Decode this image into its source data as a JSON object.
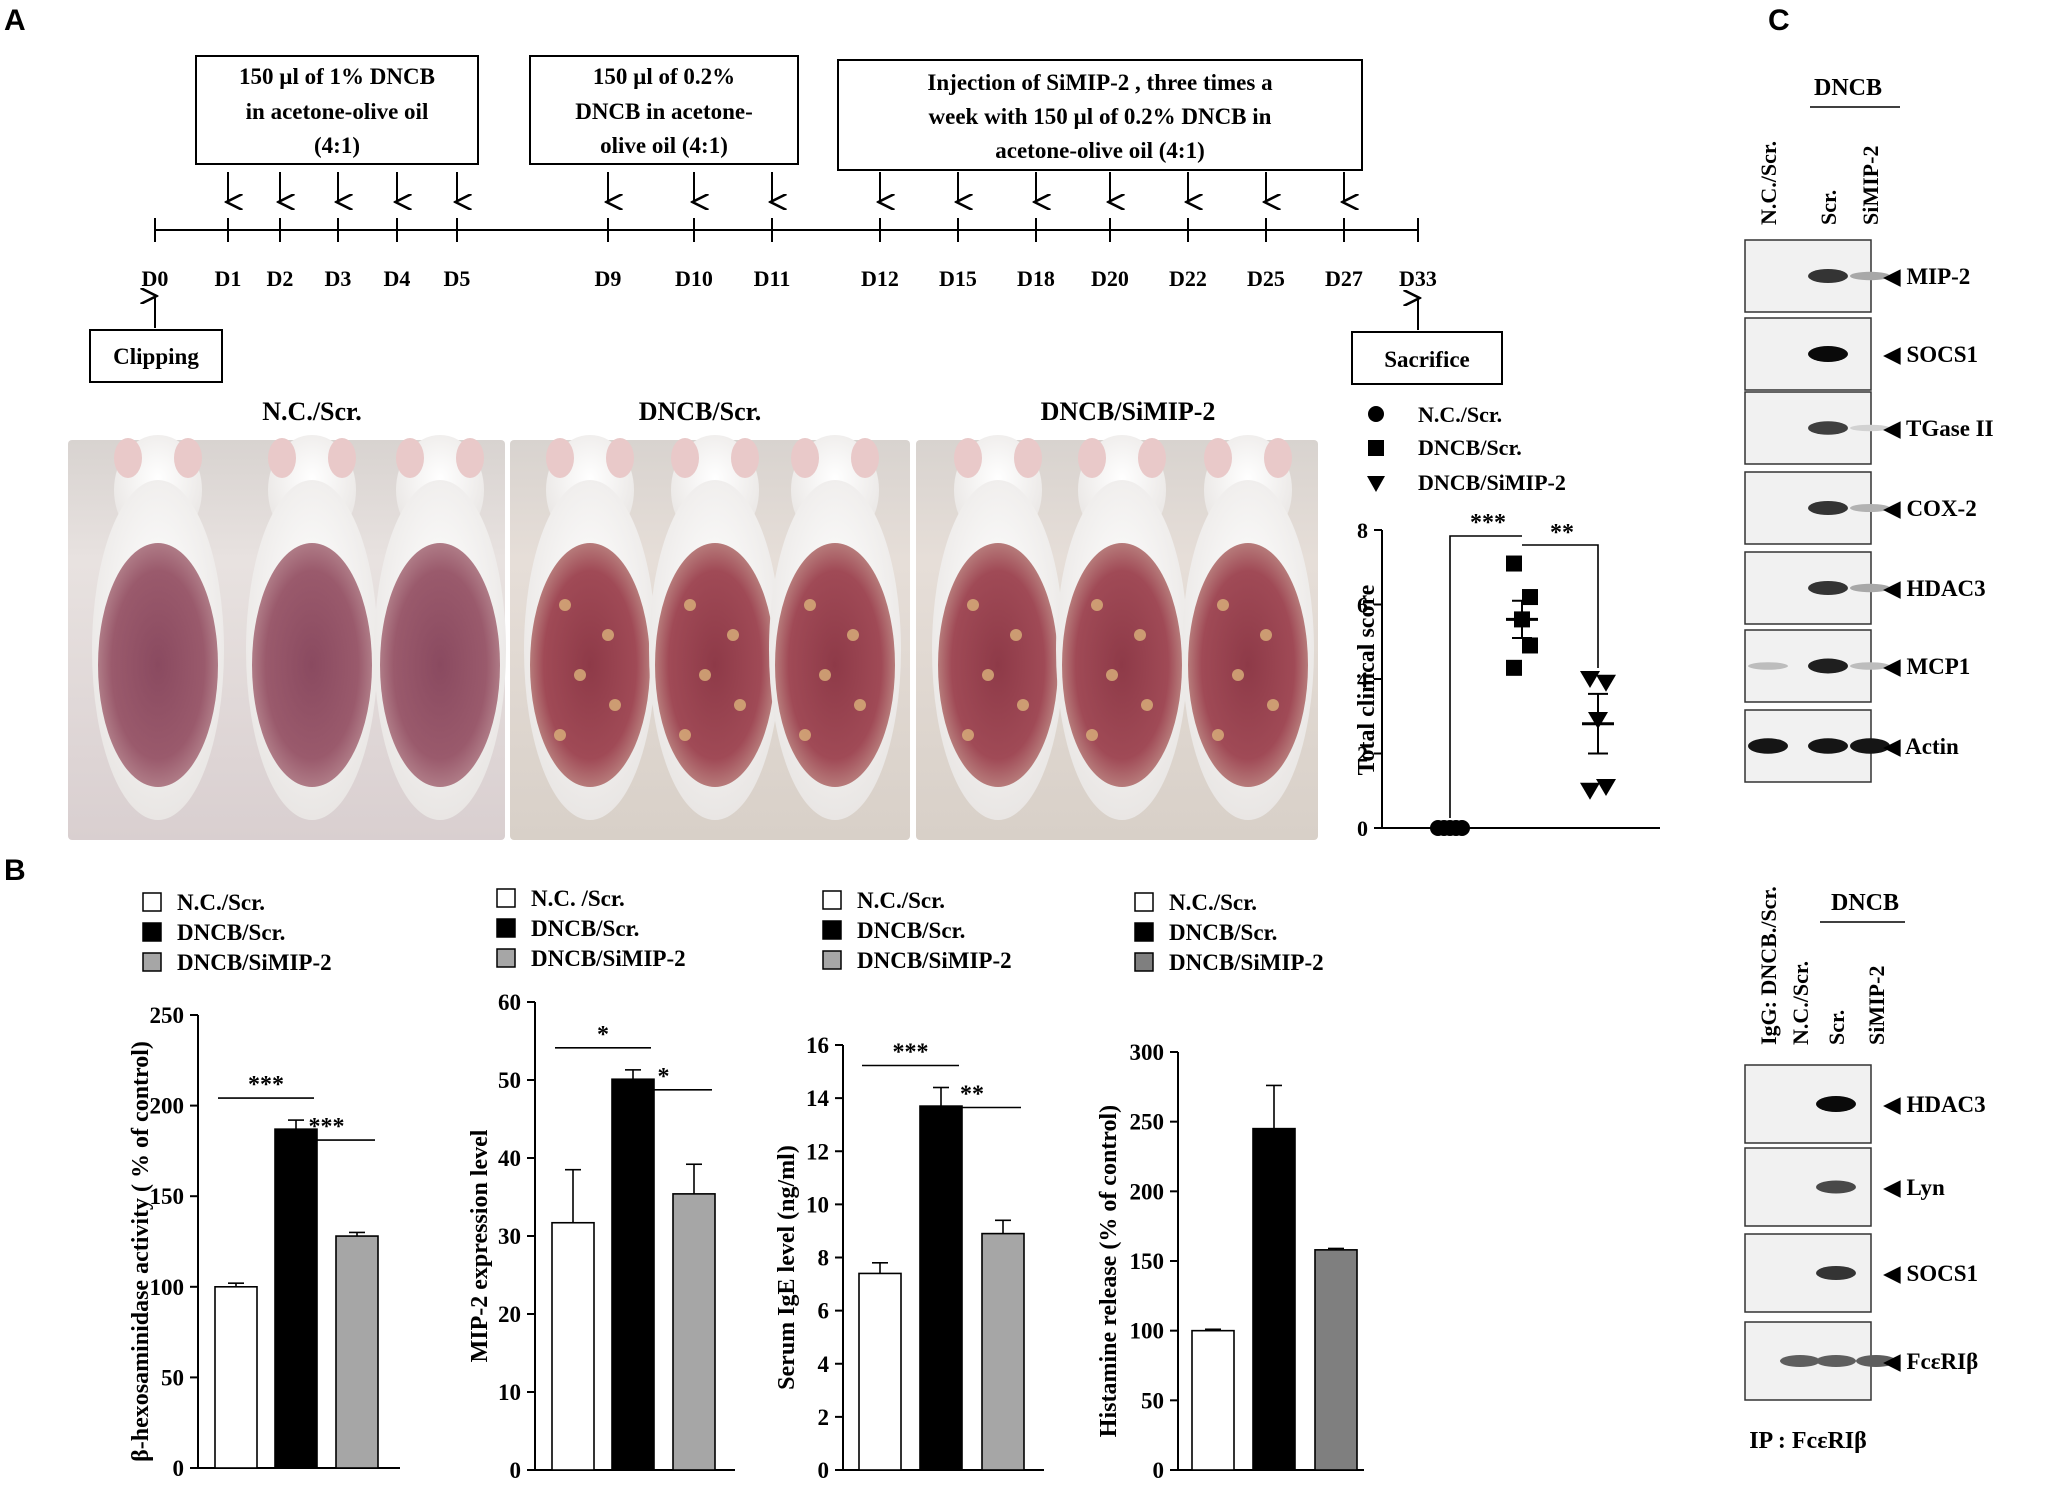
{
  "panels": {
    "a": "A",
    "b": "B",
    "c": "C"
  },
  "timeline": {
    "boxes": [
      {
        "lines": [
          "150 µl of 1% DNCB",
          "in acetone-olive oil",
          "(4:1)"
        ]
      },
      {
        "lines": [
          "150 µl of 0.2%",
          "DNCB in acetone-",
          "olive oil (4:1)"
        ]
      },
      {
        "lines": [
          "Injection of SiMIP-2 , three times a",
          "week with 150 µl of 0.2% DNCB in",
          "acetone-olive oil (4:1)"
        ]
      }
    ],
    "days": [
      "D0",
      "D1",
      "D2",
      "D3",
      "D4",
      "D5",
      "D9",
      "D10",
      "D11",
      "D12",
      "D15",
      "D18",
      "D20",
      "D22",
      "D25",
      "D27",
      "D33"
    ],
    "start_label": "Clipping",
    "end_label": "Sacrifice"
  },
  "photos": {
    "titles": [
      "N.C./Scr.",
      "DNCB/Scr.",
      "DNCB/SiMIP-2"
    ]
  },
  "score_chart": {
    "legend": [
      "N.C./Scr.",
      "DNCB/Scr.",
      "DNCB/SiMIP-2"
    ],
    "sig": [
      "***",
      "**"
    ]
  },
  "bar_legends": [
    [
      "N.C./Scr.",
      "DNCB/Scr.",
      "DNCB/SiMIP-2"
    ],
    [
      "N.C. /Scr.",
      "DNCB/Scr.",
      "DNCB/SiMIP-2"
    ],
    [
      "N.C./Scr.",
      "DNCB/Scr.",
      "DNCB/SiMIP-2"
    ],
    [
      "N.C./Scr.",
      "DNCB/Scr.",
      "DNCB/SiMIP-2"
    ]
  ],
  "chart_data": [
    {
      "type": "scatter",
      "title": "",
      "ylabel": "Total clinical score",
      "ylim": [
        0,
        8
      ],
      "yticks": [
        0,
        2,
        4,
        6,
        8
      ],
      "series": [
        {
          "name": "N.C./Scr.",
          "marker": "circle",
          "values": [
            0,
            0,
            0,
            0,
            0
          ],
          "mean": 0,
          "sem": 0
        },
        {
          "name": "DNCB/Scr.",
          "marker": "square",
          "values": [
            7.1,
            6.2,
            5.6,
            4.9,
            4.3
          ],
          "mean": 5.6,
          "sem": 0.5
        },
        {
          "name": "DNCB/SiMIP-2",
          "marker": "triangle-down",
          "values": [
            4.0,
            3.9,
            2.9,
            1.1,
            1.0
          ],
          "mean": 2.8,
          "sem": 0.8
        }
      ],
      "sig_pairs": [
        [
          "N.C./Scr.",
          "DNCB/Scr.",
          "***"
        ],
        [
          "DNCB/Scr.",
          "DNCB/SiMIP-2",
          "**"
        ]
      ]
    },
    {
      "type": "bar",
      "ylabel": "β-hexosaminidase activity ( % of control)",
      "ylim": [
        0,
        250
      ],
      "yticks": [
        0,
        50,
        100,
        150,
        200,
        250
      ],
      "categories": [
        "N.C./Scr.",
        "DNCB/Scr.",
        "DNCB/SiMIP-2"
      ],
      "values": [
        100,
        187,
        128
      ],
      "errors": [
        2,
        5,
        2
      ],
      "fills": [
        "#ffffff",
        "#000000",
        "#a6a6a6"
      ],
      "sig": [
        [
          "0",
          "1",
          "***"
        ],
        [
          "1",
          "2",
          "***"
        ]
      ]
    },
    {
      "type": "bar",
      "ylabel": "MIP-2 expression level",
      "ylim": [
        0,
        60
      ],
      "yticks": [
        0,
        10,
        20,
        30,
        40,
        50,
        60
      ],
      "categories": [
        "N.C. /Scr.",
        "DNCB/Scr.",
        "DNCB/SiMIP-2"
      ],
      "values": [
        31.7,
        50.1,
        35.4
      ],
      "errors": [
        6.8,
        1.2,
        3.8
      ],
      "fills": [
        "#ffffff",
        "#000000",
        "#a6a6a6"
      ],
      "sig": [
        [
          "0",
          "1",
          "*"
        ],
        [
          "1",
          "2",
          "*"
        ]
      ]
    },
    {
      "type": "bar",
      "ylabel": "Serum IgE level (ng/ml)",
      "ylim": [
        0,
        16
      ],
      "yticks": [
        0,
        2,
        4,
        6,
        8,
        10,
        12,
        14,
        16
      ],
      "categories": [
        "N.C./Scr.",
        "DNCB/Scr.",
        "DNCB/SiMIP-2"
      ],
      "values": [
        7.4,
        13.7,
        8.9
      ],
      "errors": [
        0.4,
        0.7,
        0.5
      ],
      "fills": [
        "#ffffff",
        "#000000",
        "#a6a6a6"
      ],
      "sig": [
        [
          "0",
          "1",
          "***"
        ],
        [
          "1",
          "2",
          "**"
        ]
      ]
    },
    {
      "type": "bar",
      "ylabel": "Histamine release (% of control)",
      "ylim": [
        0,
        300
      ],
      "yticks": [
        0,
        50,
        100,
        150,
        200,
        250,
        300
      ],
      "categories": [
        "N.C./Scr.",
        "DNCB/Scr.",
        "DNCB/SiMIP-2"
      ],
      "values": [
        100,
        245,
        158
      ],
      "errors": [
        1,
        31,
        1
      ],
      "fills": [
        "#ffffff",
        "#000000",
        "#7f7f7f"
      ],
      "sig": []
    }
  ],
  "blot_top": {
    "group_label": "DNCB",
    "lanes": [
      "N.C./Scr.",
      "Scr.",
      "SiMIP-2"
    ],
    "rows": [
      {
        "label": "◀ MIP-2",
        "intensity": [
          0,
          0.8,
          0.25
        ]
      },
      {
        "label": "◀ SOCS1",
        "intensity": [
          0,
          1.0,
          0
        ]
      },
      {
        "label": "◀ TGase II",
        "intensity": [
          0,
          0.75,
          0.05
        ]
      },
      {
        "label": "◀ COX-2",
        "intensity": [
          0,
          0.8,
          0.2
        ]
      },
      {
        "label": "◀ HDAC3",
        "intensity": [
          0,
          0.8,
          0.25
        ]
      },
      {
        "label": "◀ MCP1",
        "intensity": [
          0.15,
          0.9,
          0.15
        ]
      },
      {
        "label": "◀ Actin",
        "intensity": [
          0.95,
          0.95,
          0.95
        ]
      }
    ]
  },
  "blot_bottom": {
    "group_label": "DNCB",
    "lanes": [
      "IgG: DNCB./Scr.",
      "N.C./Scr.",
      "Scr.",
      "SiMIP-2"
    ],
    "rows": [
      {
        "label": "◀ HDAC3",
        "intensity": [
          0,
          0,
          1.0,
          0
        ]
      },
      {
        "label": "◀ Lyn",
        "intensity": [
          0,
          0,
          0.7,
          0
        ]
      },
      {
        "label": "◀ SOCS1",
        "intensity": [
          0,
          0,
          0.8,
          0
        ]
      },
      {
        "label": "◀ FcεRIβ",
        "intensity": [
          0,
          0.6,
          0.6,
          0.6
        ]
      }
    ],
    "ip_label": "IP : FcεRIβ"
  },
  "colors": {
    "black": "#000000",
    "grey": "#a6a6a6",
    "dark_grey": "#7f7f7f",
    "blot_bg": "#f1f1f1"
  }
}
